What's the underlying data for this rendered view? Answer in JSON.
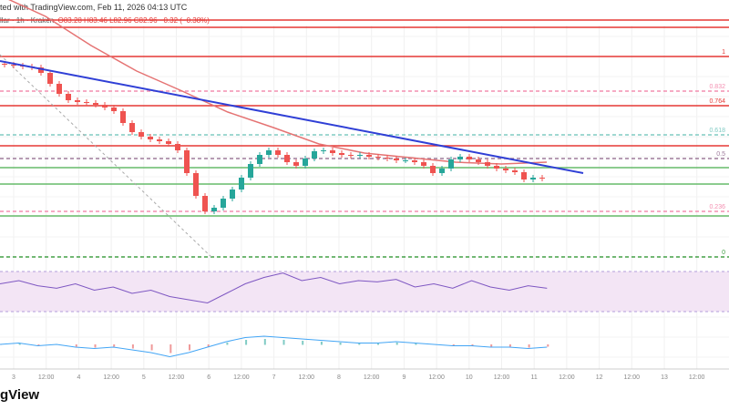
{
  "header": {
    "published": "ted with TradingView.com, Feb 11, 2026 04:13 UTC",
    "symbol": "llar · 1h · Kraken",
    "ohlc": "O83.28 H83.46 L82.96 C82.96 −0.32 (−0.38%)"
  },
  "logo": "gView",
  "chart_data": {
    "type": "candlestick",
    "closes": [
      85.44,
      85.42,
      85.4,
      85.38,
      85.26,
      85.02,
      84.8,
      84.66,
      84.62,
      84.6,
      84.56,
      84.5,
      84.42,
      84.16,
      83.96,
      83.86,
      83.8,
      83.76,
      83.7,
      83.56,
      83.06,
      82.56,
      82.22,
      82.3,
      82.5,
      82.7,
      82.96,
      83.26,
      83.46,
      83.56,
      83.46,
      83.3,
      83.22,
      83.38,
      83.54,
      83.56,
      83.5,
      83.46,
      83.44,
      83.46,
      83.42,
      83.4,
      83.38,
      83.34,
      83.34,
      83.3,
      83.22,
      83.06,
      83.16,
      83.36,
      83.42,
      83.36,
      83.3,
      83.22,
      83.16,
      83.12,
      83.08,
      82.92,
      82.96,
      82.94
    ],
    "first_open": 85.46,
    "x_ticks": [
      "3",
      "12:00",
      "4",
      "12:00",
      "5",
      "12:00",
      "6",
      "12:00",
      "7",
      "12:00",
      "8",
      "12:00",
      "9",
      "12:00",
      "10",
      "12:00",
      "11",
      "12:00",
      "12",
      "12:00",
      "13",
      "12:00"
    ],
    "levels": [
      {
        "price": 86.42,
        "color": "#e53935",
        "style": "solid",
        "label": ""
      },
      {
        "price": 85.62,
        "color": "#e53935",
        "style": "solid",
        "label": "1"
      },
      {
        "price": 84.86,
        "color": "#f48fb1",
        "style": "dashed",
        "label": "0.832"
      },
      {
        "price": 84.54,
        "color": "#e53935",
        "style": "solid",
        "label": "0.764"
      },
      {
        "price": 83.9,
        "color": "#80cbc4",
        "style": "dashed",
        "label": "0.618"
      },
      {
        "price": 83.66,
        "color": "#e53935",
        "style": "solid",
        "label": ""
      },
      {
        "price": 83.38,
        "color": "#9e7b9b",
        "style": "dashed",
        "label": "0.5"
      },
      {
        "price": 83.18,
        "color": "#66bb6a",
        "style": "solid",
        "label": ""
      },
      {
        "price": 82.82,
        "color": "#66bb6a",
        "style": "solid",
        "label": ""
      },
      {
        "price": 82.22,
        "color": "#f48fb1",
        "style": "dashed",
        "label": "0.236"
      },
      {
        "price": 82.12,
        "color": "#66bb6a",
        "style": "solid",
        "label": ""
      },
      {
        "price": 81.22,
        "color": "#43a047",
        "style": "dashed",
        "label": "0"
      }
    ],
    "trendline": {
      "start": 85.52,
      "end": 83.06,
      "color": "#2f3fd6"
    },
    "moving_average": {
      "values": [
        86.96,
        86.5,
        85.86,
        85.3,
        84.86,
        84.4,
        84.06,
        83.7,
        83.5,
        83.4,
        83.3,
        83.26,
        83.3
      ],
      "color": "#e57373"
    },
    "rsi": [
      55,
      60,
      52,
      48,
      55,
      45,
      50,
      40,
      45,
      35,
      30,
      25,
      40,
      55,
      65,
      72,
      60,
      65,
      55,
      60,
      58,
      62,
      50,
      55,
      48,
      60,
      50,
      45,
      52,
      48
    ],
    "macd": [
      0,
      1,
      -1,
      0,
      -2,
      -3,
      -2,
      -4,
      -6,
      -9,
      -6,
      -2,
      2,
      5,
      6,
      5,
      4,
      3,
      2,
      1,
      1,
      2,
      1,
      0,
      -1,
      -1,
      -2,
      -2,
      -3,
      -2
    ],
    "colors": {
      "up": "#26a69a",
      "down": "#ef5350",
      "rsi": "#7e57c2",
      "rsi_band": "#f3e5f5"
    }
  }
}
